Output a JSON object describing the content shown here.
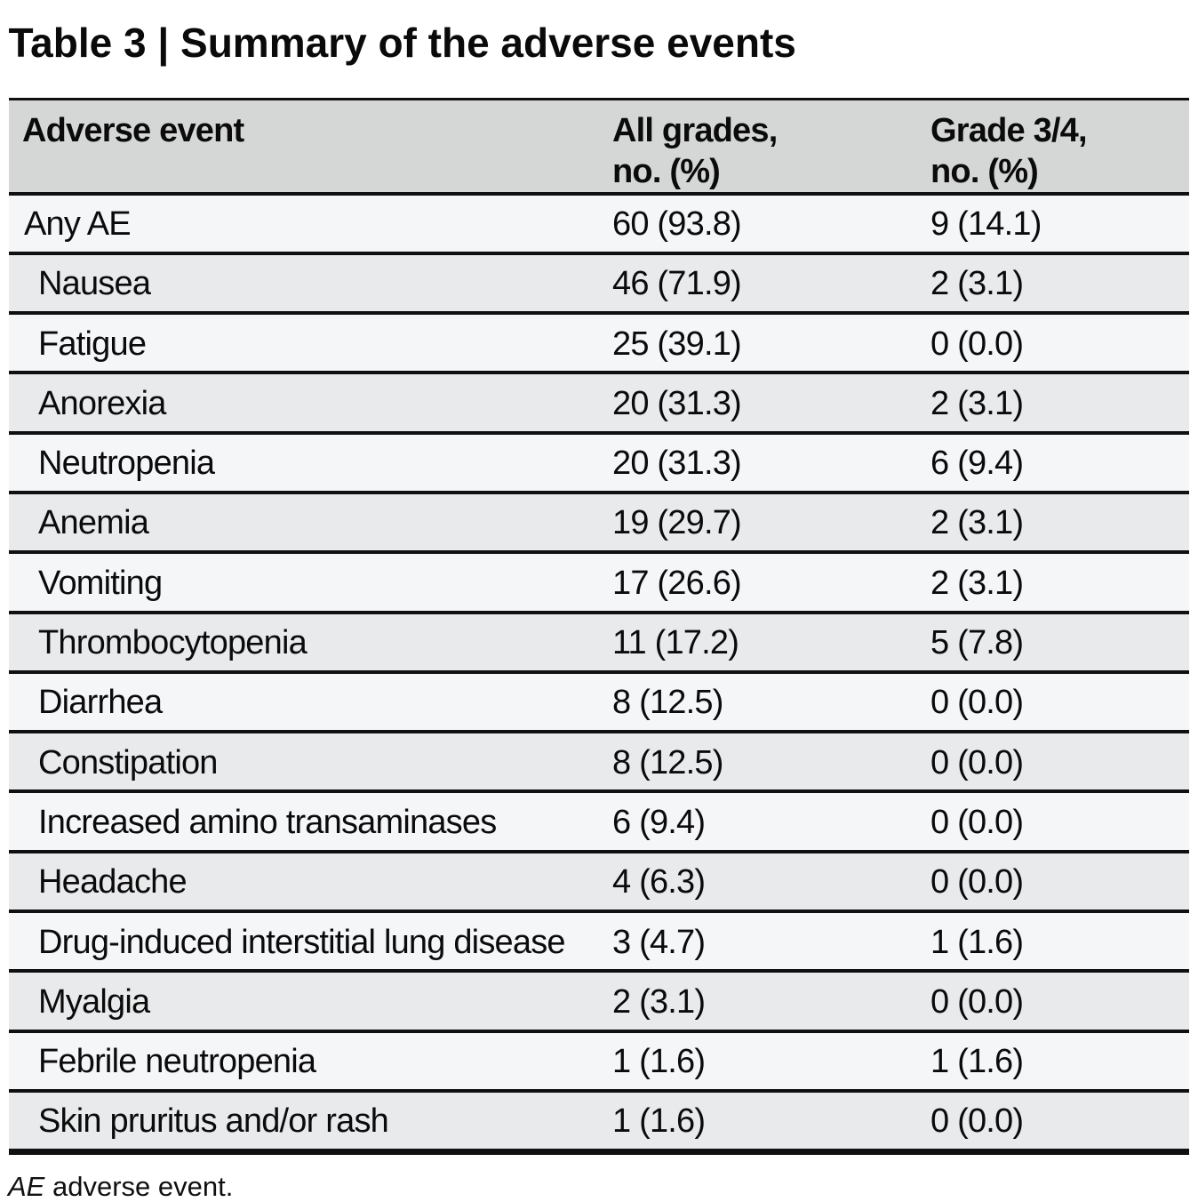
{
  "title": {
    "text": "Table 3 | Summary of the adverse events"
  },
  "table": {
    "header": {
      "columns": [
        {
          "label": "Adverse event"
        },
        {
          "label": "All grades,\nno. (%)"
        },
        {
          "label": "Grade 3/4,\nno. (%)"
        }
      ],
      "background": "#d5d6d6"
    },
    "rows": [
      {
        "event": "Any AE",
        "indent": false,
        "all_grades": "60 (93.8)",
        "grade_3_4": "9 (14.1)"
      },
      {
        "event": "Nausea",
        "indent": true,
        "all_grades": "46 (71.9)",
        "grade_3_4": "2 (3.1)"
      },
      {
        "event": "Fatigue",
        "indent": true,
        "all_grades": "25 (39.1)",
        "grade_3_4": "0 (0.0)"
      },
      {
        "event": "Anorexia",
        "indent": true,
        "all_grades": "20 (31.3)",
        "grade_3_4": "2 (3.1)"
      },
      {
        "event": "Neutropenia",
        "indent": true,
        "all_grades": "20 (31.3)",
        "grade_3_4": "6 (9.4)"
      },
      {
        "event": "Anemia",
        "indent": true,
        "all_grades": "19 (29.7)",
        "grade_3_4": "2 (3.1)"
      },
      {
        "event": "Vomiting",
        "indent": true,
        "all_grades": "17 (26.6)",
        "grade_3_4": "2 (3.1)"
      },
      {
        "event": "Thrombocytopenia",
        "indent": true,
        "all_grades": "11 (17.2)",
        "grade_3_4": "5 (7.8)"
      },
      {
        "event": "Diarrhea",
        "indent": true,
        "all_grades": "8 (12.5)",
        "grade_3_4": "0 (0.0)"
      },
      {
        "event": "Constipation",
        "indent": true,
        "all_grades": "8 (12.5)",
        "grade_3_4": "0 (0.0)"
      },
      {
        "event": "Increased amino transaminases",
        "indent": true,
        "all_grades": "6 (9.4)",
        "grade_3_4": "0 (0.0)"
      },
      {
        "event": "Headache",
        "indent": true,
        "all_grades": "4 (6.3)",
        "grade_3_4": "0 (0.0)"
      },
      {
        "event": "Drug-induced interstitial lung disease",
        "indent": true,
        "all_grades": "3 (4.7)",
        "grade_3_4": "1 (1.6)"
      },
      {
        "event": "Myalgia",
        "indent": true,
        "all_grades": "2 (3.1)",
        "grade_3_4": "0 (0.0)"
      },
      {
        "event": "Febrile neutropenia",
        "indent": true,
        "all_grades": "1 (1.6)",
        "grade_3_4": "1 (1.6)"
      },
      {
        "event": "Skin pruritus and/or rash",
        "indent": true,
        "all_grades": "1 (1.6)",
        "grade_3_4": "0 (0.0)"
      }
    ],
    "row_colors": {
      "odd": "#f5f6f8",
      "even": "#e9eaeb"
    },
    "line_color": "#101012"
  },
  "footnote": {
    "abbreviation": "AE",
    "text": "adverse event."
  }
}
